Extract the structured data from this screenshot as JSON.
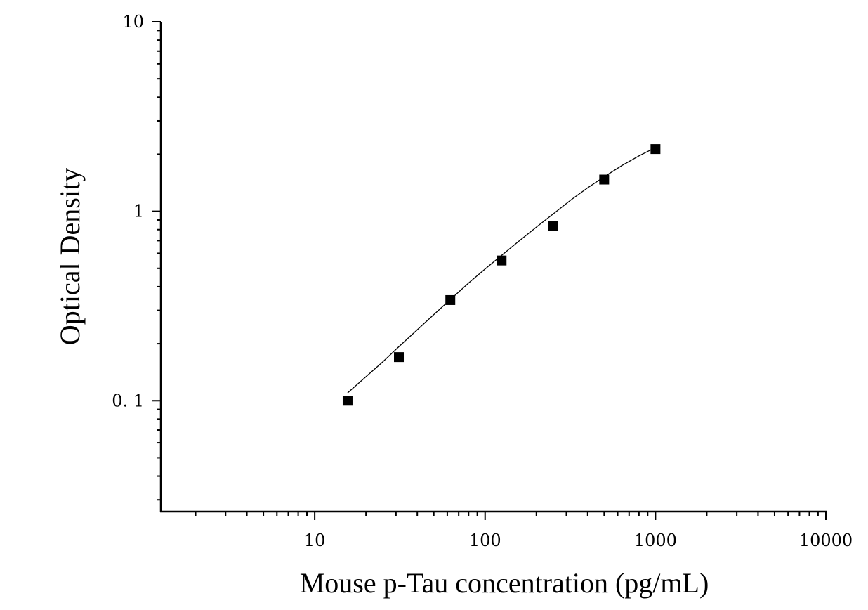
{
  "chart_data": {
    "type": "scatter",
    "xlabel": "Mouse p-Tau concentration (pg/mL)",
    "ylabel": "Optical Density",
    "x_scale": "log",
    "y_scale": "log",
    "xlim": [
      1.25,
      10000
    ],
    "ylim": [
      0.026,
      10
    ],
    "x_ticks": [
      {
        "value": 10,
        "label": "10"
      },
      {
        "value": 100,
        "label": "100"
      },
      {
        "value": 1000,
        "label": "1000"
      },
      {
        "value": 10000,
        "label": "10000"
      }
    ],
    "y_ticks": [
      {
        "value": 0.1,
        "label": "0. 1"
      },
      {
        "value": 1,
        "label": "1"
      },
      {
        "value": 10,
        "label": "10"
      }
    ],
    "grid": false,
    "series": [
      {
        "points": [
          {
            "x": 15.6,
            "y": 0.1
          },
          {
            "x": 31.2,
            "y": 0.17
          },
          {
            "x": 62.5,
            "y": 0.34
          },
          {
            "x": 125,
            "y": 0.55
          },
          {
            "x": 250,
            "y": 0.84
          },
          {
            "x": 500,
            "y": 1.47
          },
          {
            "x": 1000,
            "y": 2.13
          }
        ],
        "marker": "square",
        "color": "#000000"
      }
    ],
    "fit_curve": {
      "x": [
        15.6,
        20,
        25,
        31.2,
        40,
        50,
        62.5,
        80,
        100,
        125,
        160,
        200,
        250,
        320,
        400,
        500,
        640,
        800,
        1000
      ],
      "y": [
        0.11,
        0.134,
        0.16,
        0.193,
        0.237,
        0.285,
        0.342,
        0.418,
        0.496,
        0.585,
        0.702,
        0.825,
        0.965,
        1.15,
        1.33,
        1.52,
        1.75,
        1.96,
        2.17
      ],
      "color": "#000000"
    }
  }
}
